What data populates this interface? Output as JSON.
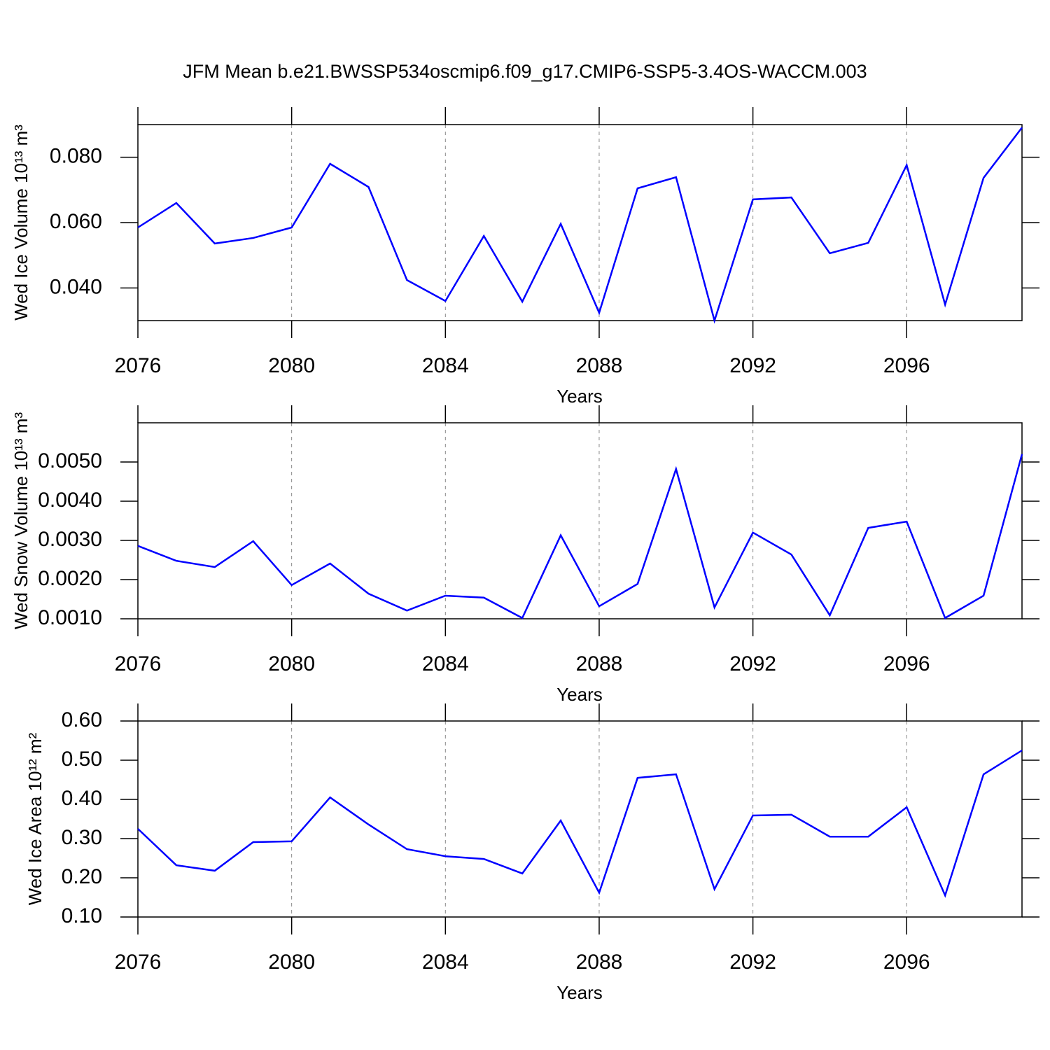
{
  "title": "JFM Mean b.e21.BWSSP534oscmip6.f09_g17.CMIP6-SSP5-3.4OS-WACCM.003",
  "chart_data": [
    {
      "type": "line",
      "xlabel": "Years",
      "ylabel": "Wed Ice Volume 10¹³ m³",
      "x": [
        2076,
        2077,
        2078,
        2079,
        2080,
        2081,
        2082,
        2083,
        2084,
        2085,
        2086,
        2087,
        2088,
        2089,
        2090,
        2091,
        2092,
        2093,
        2094,
        2095,
        2096,
        2097,
        2098,
        2099
      ],
      "values": [
        0.0585,
        0.066,
        0.0536,
        0.0553,
        0.0585,
        0.078,
        0.0709,
        0.0424,
        0.036,
        0.0559,
        0.0358,
        0.0596,
        0.0324,
        0.0705,
        0.0739,
        0.03,
        0.0671,
        0.0677,
        0.0506,
        0.0538,
        0.0776,
        0.0349,
        0.0737,
        0.0891
      ],
      "color": "#0000ff",
      "xlim": [
        2076,
        2099
      ],
      "xticks": [
        2076,
        2080,
        2084,
        2088,
        2092,
        2096
      ],
      "ylim": [
        0.03,
        0.09
      ],
      "yticks": [
        {
          "value": 0.04,
          "label": "0.040"
        },
        {
          "value": 0.06,
          "label": "0.060"
        },
        {
          "value": 0.08,
          "label": "0.080"
        }
      ],
      "xgrid": true
    },
    {
      "type": "line",
      "xlabel": "Years",
      "ylabel": "Wed Snow Volume 10¹³ m³",
      "x": [
        2076,
        2077,
        2078,
        2079,
        2080,
        2081,
        2082,
        2083,
        2084,
        2085,
        2086,
        2087,
        2088,
        2089,
        2090,
        2091,
        2092,
        2093,
        2094,
        2095,
        2096,
        2097,
        2098,
        2099
      ],
      "values": [
        0.00286,
        0.00248,
        0.00232,
        0.00298,
        0.00186,
        0.00241,
        0.00164,
        0.00121,
        0.00159,
        0.00154,
        0.00102,
        0.00313,
        0.00132,
        0.00189,
        0.00482,
        0.00129,
        0.0032,
        0.00264,
        0.00109,
        0.00332,
        0.00348,
        0.00102,
        0.00159,
        0.0052
      ],
      "color": "#0000ff",
      "xlim": [
        2076,
        2099
      ],
      "xticks": [
        2076,
        2080,
        2084,
        2088,
        2092,
        2096
      ],
      "ylim": [
        0.001,
        0.006
      ],
      "yticks": [
        {
          "value": 0.001,
          "label": "0.0010"
        },
        {
          "value": 0.002,
          "label": "0.0020"
        },
        {
          "value": 0.003,
          "label": "0.0030"
        },
        {
          "value": 0.004,
          "label": "0.0040"
        },
        {
          "value": 0.005,
          "label": "0.0050"
        }
      ],
      "xgrid": true
    },
    {
      "type": "line",
      "xlabel": "Years",
      "ylabel": "Wed Ice Area 10¹² m²",
      "x": [
        2076,
        2077,
        2078,
        2079,
        2080,
        2081,
        2082,
        2083,
        2084,
        2085,
        2086,
        2087,
        2088,
        2089,
        2090,
        2091,
        2092,
        2093,
        2094,
        2095,
        2096,
        2097,
        2098,
        2099
      ],
      "values": [
        0.325,
        0.232,
        0.218,
        0.291,
        0.293,
        0.405,
        0.336,
        0.273,
        0.255,
        0.248,
        0.211,
        0.346,
        0.162,
        0.455,
        0.464,
        0.171,
        0.359,
        0.361,
        0.305,
        0.305,
        0.38,
        0.155,
        0.464,
        0.525
      ],
      "color": "#0000ff",
      "xlim": [
        2076,
        2099
      ],
      "xticks": [
        2076,
        2080,
        2084,
        2088,
        2092,
        2096
      ],
      "ylim": [
        0.1,
        0.6
      ],
      "yticks": [
        {
          "value": 0.1,
          "label": "0.10"
        },
        {
          "value": 0.2,
          "label": "0.20"
        },
        {
          "value": 0.3,
          "label": "0.30"
        },
        {
          "value": 0.4,
          "label": "0.40"
        },
        {
          "value": 0.5,
          "label": "0.50"
        },
        {
          "value": 0.6,
          "label": "0.60"
        }
      ],
      "xgrid": true
    }
  ]
}
